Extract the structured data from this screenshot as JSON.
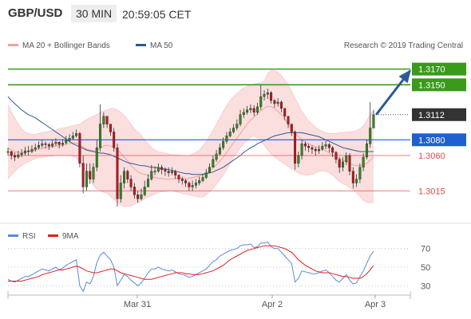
{
  "header": {
    "symbol": "GBP/USD",
    "timeframe": "30 MIN",
    "time": "20:59:05 CET"
  },
  "legend": {
    "ma20_bb": "MA 20 + Bollinger Bands",
    "ma50": "MA 50",
    "rsi": "RSI",
    "ma9": "9MA",
    "source": "Research © 2019 Trading Central"
  },
  "colors": {
    "bollinger_band": "#f7b5b5",
    "ma20": "#f4a0a0",
    "ma50": "#2c5a96",
    "resistance": "#3a9a1a",
    "pivot": "#1f5fcf",
    "support": "#e04a4a",
    "last_price": "#333333",
    "candle_up": "#2e8b1e",
    "candle_down": "#c0141b",
    "rsi_line": "#5b8bd6",
    "rsi_ma": "#e02020",
    "arrow": "#2c5a96"
  },
  "chart_data": [
    {
      "type": "candlestick",
      "ylim": [
        1.2992,
        1.3195
      ],
      "x_labels": [
        "Mar 31",
        "Apr 2",
        "Apr 3"
      ],
      "levels": [
        {
          "kind": "resistance",
          "value": 1.317,
          "label": "1.3170"
        },
        {
          "kind": "resistance",
          "value": 1.315,
          "label": "1.3150"
        },
        {
          "kind": "last_price",
          "value": 1.3112,
          "label": "1.3112"
        },
        {
          "kind": "pivot",
          "value": 1.308,
          "label": "1.3080"
        },
        {
          "kind": "support",
          "value": 1.306,
          "label": "1.3060"
        },
        {
          "kind": "support",
          "value": 1.3015,
          "label": "1.3015"
        }
      ],
      "arrow": {
        "from": 1.3112,
        "to": 1.317
      },
      "candles": {
        "count": 108,
        "close": [
          1.3065,
          1.306,
          1.3058,
          1.3061,
          1.3063,
          1.3066,
          1.3065,
          1.3068,
          1.307,
          1.3073,
          1.3075,
          1.3074,
          1.3072,
          1.3075,
          1.3077,
          1.3074,
          1.3076,
          1.3079,
          1.3082,
          1.3085,
          1.3088,
          1.305,
          1.302,
          1.304,
          1.303,
          1.3045,
          1.307,
          1.31,
          1.311,
          1.31,
          1.309,
          1.307,
          1.3005,
          1.3025,
          1.304,
          1.303,
          1.302,
          1.301,
          1.3005,
          1.301,
          1.302,
          1.303,
          1.304,
          1.304,
          1.3045,
          1.3042,
          1.304,
          1.3038,
          1.304,
          1.3035,
          1.303,
          1.3028,
          1.3025,
          1.302,
          1.3022,
          1.3025,
          1.3028,
          1.3032,
          1.3038,
          1.3045,
          1.3055,
          1.3062,
          1.307,
          1.3078,
          1.3085,
          1.309,
          1.3095,
          1.31,
          1.3112,
          1.3115,
          1.3118,
          1.312,
          1.3115,
          1.3122,
          1.3135,
          1.3138,
          1.314,
          1.313,
          1.3126,
          1.3128,
          1.312,
          1.311,
          1.31,
          1.309,
          1.305,
          1.306,
          1.3075,
          1.3072,
          1.307,
          1.3068,
          1.3066,
          1.3068,
          1.3072,
          1.3074,
          1.307,
          1.3064,
          1.3055,
          1.3045,
          1.3052,
          1.306,
          1.304,
          1.3025,
          1.303,
          1.3045,
          1.3058,
          1.3075,
          1.3095,
          1.3112
        ],
        "high": [
          1.307,
          1.3066,
          1.3064,
          1.3066,
          1.3068,
          1.3071,
          1.3072,
          1.3073,
          1.3075,
          1.3078,
          1.308,
          1.3078,
          1.3076,
          1.308,
          1.3082,
          1.3078,
          1.3081,
          1.3085,
          1.3087,
          1.309,
          1.3093,
          1.309,
          1.306,
          1.305,
          1.305,
          1.305,
          1.308,
          1.3125,
          1.3115,
          1.311,
          1.31,
          1.3095,
          1.3075,
          1.3035,
          1.3045,
          1.3042,
          1.3035,
          1.3025,
          1.3015,
          1.3018,
          1.3028,
          1.3036,
          1.3048,
          1.3046,
          1.305,
          1.3048,
          1.3045,
          1.3045,
          1.3045,
          1.3042,
          1.3036,
          1.3033,
          1.303,
          1.3027,
          1.3028,
          1.303,
          1.3033,
          1.3037,
          1.3043,
          1.305,
          1.306,
          1.3067,
          1.3075,
          1.3083,
          1.309,
          1.3095,
          1.31,
          1.3106,
          1.3118,
          1.312,
          1.3123,
          1.3125,
          1.3124,
          1.3127,
          1.315,
          1.3143,
          1.3145,
          1.3142,
          1.3132,
          1.3133,
          1.313,
          1.312,
          1.311,
          1.31,
          1.3092,
          1.3065,
          1.308,
          1.3078,
          1.3075,
          1.3073,
          1.3071,
          1.3073,
          1.3077,
          1.3079,
          1.3076,
          1.3072,
          1.3066,
          1.3058,
          1.3058,
          1.3064,
          1.3063,
          1.3045,
          1.3036,
          1.305,
          1.3063,
          1.308,
          1.3128,
          1.3118
        ],
        "low": [
          1.306,
          1.3055,
          1.3053,
          1.3056,
          1.3058,
          1.306,
          1.306,
          1.3063,
          1.3065,
          1.3068,
          1.307,
          1.3069,
          1.3067,
          1.307,
          1.3072,
          1.3069,
          1.3071,
          1.3074,
          1.3077,
          1.308,
          1.3083,
          1.3045,
          1.3012,
          1.3015,
          1.3024,
          1.3025,
          1.304,
          1.3065,
          1.3095,
          1.3095,
          1.3085,
          1.3065,
          1.2995,
          1.3,
          1.3018,
          1.3025,
          1.3015,
          1.3005,
          1.3,
          1.3003,
          1.3008,
          1.3024,
          1.3028,
          1.3035,
          1.3038,
          1.3036,
          1.3034,
          1.3033,
          1.3035,
          1.303,
          1.3025,
          1.3023,
          1.302,
          1.3015,
          1.3015,
          1.3018,
          1.3022,
          1.3026,
          1.303,
          1.3037,
          1.3045,
          1.3052,
          1.306,
          1.3067,
          1.3075,
          1.3083,
          1.3088,
          1.3092,
          1.3097,
          1.3108,
          1.3112,
          1.3114,
          1.311,
          1.3112,
          1.3118,
          1.313,
          1.3132,
          1.3126,
          1.3121,
          1.3122,
          1.3115,
          1.3105,
          1.3095,
          1.3085,
          1.3042,
          1.3045,
          1.3055,
          1.3066,
          1.3064,
          1.3062,
          1.306,
          1.3062,
          1.3066,
          1.3068,
          1.3064,
          1.3058,
          1.305,
          1.3038,
          1.304,
          1.3048,
          1.3035,
          1.3018,
          1.302,
          1.3025,
          1.304,
          1.3055,
          1.307,
          1.3105
        ]
      },
      "ma20": [
        1.307,
        1.3067,
        1.3065,
        1.3064,
        1.3064,
        1.3064,
        1.3065,
        1.3066,
        1.3067,
        1.3068,
        1.3069,
        1.307,
        1.3071,
        1.3071,
        1.3072,
        1.3073,
        1.3073,
        1.3074,
        1.3075,
        1.3076,
        1.3076,
        1.3073,
        1.3071,
        1.3068,
        1.3067,
        1.3066,
        1.3067,
        1.3069,
        1.3072,
        1.3073,
        1.3072,
        1.307,
        1.3067,
        1.3063,
        1.3058,
        1.3053,
        1.3047,
        1.3043,
        1.3039,
        1.3037,
        1.3036,
        1.3035,
        1.3033,
        1.3032,
        1.3031,
        1.3031,
        1.303,
        1.303,
        1.303,
        1.3031,
        1.3031,
        1.3031,
        1.303,
        1.3031,
        1.3032,
        1.3033,
        1.3034,
        1.3036,
        1.3038,
        1.304,
        1.3044,
        1.3048,
        1.3053,
        1.3058,
        1.3064,
        1.307,
        1.3076,
        1.3082,
        1.3088,
        1.3094,
        1.31,
        1.3105,
        1.3109,
        1.3113,
        1.3117,
        1.312,
        1.3123,
        1.3122,
        1.312,
        1.3116,
        1.3112,
        1.3106,
        1.31,
        1.3094,
        1.3088,
        1.3084,
        1.308,
        1.3077,
        1.3075,
        1.3073,
        1.3071,
        1.307,
        1.3068,
        1.3066,
        1.3063,
        1.3061,
        1.3058,
        1.3056,
        1.3054,
        1.3052,
        1.305,
        1.3048,
        1.3047,
        1.3047,
        1.3048,
        1.305,
        1.3054,
        1.3058
      ],
      "ma50": [
        1.3135,
        1.313,
        1.3126,
        1.3122,
        1.3118,
        1.3115,
        1.3112,
        1.311,
        1.3108,
        1.3105,
        1.3102,
        1.3099,
        1.3096,
        1.3093,
        1.309,
        1.3087,
        1.3084,
        1.3081,
        1.3078,
        1.3075,
        1.3073,
        1.3071,
        1.3069,
        1.3067,
        1.3066,
        1.3065,
        1.3064,
        1.3063,
        1.3063,
        1.3062,
        1.3061,
        1.3059,
        1.3057,
        1.3055,
        1.3053,
        1.3051,
        1.305,
        1.3049,
        1.3048,
        1.3047,
        1.3047,
        1.3046,
        1.3045,
        1.3045,
        1.3044,
        1.3043,
        1.3043,
        1.3042,
        1.3041,
        1.304,
        1.3039,
        1.3038,
        1.3037,
        1.3037,
        1.3036,
        1.3036,
        1.3036,
        1.3036,
        1.3037,
        1.3038,
        1.3039,
        1.3041,
        1.3043,
        1.3045,
        1.3048,
        1.3051,
        1.3054,
        1.3057,
        1.306,
        1.3064,
        1.3067,
        1.307,
        1.3072,
        1.3075,
        1.3077,
        1.3079,
        1.3081,
        1.3083,
        1.3085,
        1.3086,
        1.3087,
        1.3088,
        1.3089,
        1.3089,
        1.3089,
        1.3089,
        1.3089,
        1.3088,
        1.3087,
        1.3086,
        1.3085,
        1.3084,
        1.3082,
        1.308,
        1.3078,
        1.3076,
        1.3074,
        1.3072,
        1.307,
        1.3069,
        1.3068,
        1.3067,
        1.3066,
        1.3065,
        1.3065,
        1.3065,
        1.3065,
        1.3065
      ],
      "bb_upper": [
        1.3125,
        1.3115,
        1.3108,
        1.31,
        1.3094,
        1.309,
        1.3088,
        1.3087,
        1.3087,
        1.3088,
        1.3089,
        1.309,
        1.3091,
        1.3092,
        1.3093,
        1.3094,
        1.3095,
        1.3096,
        1.3097,
        1.3098,
        1.3099,
        1.31,
        1.3103,
        1.3106,
        1.3108,
        1.311,
        1.3112,
        1.3115,
        1.3117,
        1.3118,
        1.312,
        1.312,
        1.3118,
        1.3115,
        1.3111,
        1.3106,
        1.31,
        1.3094,
        1.309,
        1.3086,
        1.308,
        1.3075,
        1.307,
        1.3067,
        1.3065,
        1.3064,
        1.3063,
        1.3062,
        1.3061,
        1.3061,
        1.3061,
        1.306,
        1.306,
        1.306,
        1.3062,
        1.3064,
        1.3067,
        1.3072,
        1.3078,
        1.3085,
        1.3092,
        1.31,
        1.3108,
        1.3116,
        1.3124,
        1.313,
        1.3135,
        1.3139,
        1.3143,
        1.3146,
        1.3148,
        1.315,
        1.3151,
        1.3152,
        1.3153,
        1.3155,
        1.3165,
        1.3168,
        1.3168,
        1.3166,
        1.3162,
        1.3156,
        1.315,
        1.3142,
        1.3133,
        1.3125,
        1.3116,
        1.311,
        1.3104,
        1.31,
        1.3096,
        1.3093,
        1.3091,
        1.3089,
        1.3088,
        1.3088,
        1.3088,
        1.3089,
        1.3089,
        1.309,
        1.309,
        1.3091,
        1.3092,
        1.3094,
        1.3098,
        1.3105,
        1.3112,
        1.3118
      ],
      "bb_lower": [
        1.303,
        1.3035,
        1.304,
        1.3044,
        1.3047,
        1.305,
        1.3052,
        1.3054,
        1.3056,
        1.3057,
        1.3058,
        1.3058,
        1.3059,
        1.3059,
        1.306,
        1.306,
        1.306,
        1.306,
        1.306,
        1.3059,
        1.3057,
        1.3052,
        1.3045,
        1.3038,
        1.303,
        1.3022,
        1.3017,
        1.3015,
        1.3013,
        1.3012,
        1.3008,
        1.3004,
        1.3,
        1.2997,
        1.2995,
        1.2995,
        1.2996,
        1.2998,
        1.3,
        1.3002,
        1.3005,
        1.3007,
        1.3009,
        1.3011,
        1.3013,
        1.3014,
        1.3014,
        1.3015,
        1.3015,
        1.3014,
        1.3013,
        1.3012,
        1.3011,
        1.301,
        1.3009,
        1.3008,
        1.3007,
        1.3007,
        1.301,
        1.3014,
        1.3018,
        1.3023,
        1.3029,
        1.3035,
        1.3042,
        1.305,
        1.3057,
        1.3064,
        1.307,
        1.3075,
        1.3079,
        1.3083,
        1.3085,
        1.3082,
        1.3078,
        1.3073,
        1.3067,
        1.3062,
        1.3058,
        1.3055,
        1.3052,
        1.3049,
        1.3046,
        1.3043,
        1.304,
        1.3038,
        1.3036,
        1.3035,
        1.3035,
        1.3036,
        1.3038,
        1.304,
        1.304,
        1.304,
        1.3038,
        1.3035,
        1.3031,
        1.3027,
        1.3024,
        1.3022,
        1.3019,
        1.3016,
        1.3012,
        1.3008,
        1.3003,
        1.3,
        1.3,
        1.3
      ]
    },
    {
      "type": "line",
      "name": "RSI",
      "ylim": [
        20,
        80
      ],
      "y_ticks": [
        70,
        50,
        30
      ],
      "series": [
        {
          "name": "RSI",
          "values": [
            37,
            35,
            34,
            36,
            38,
            40,
            40,
            42,
            44,
            46,
            48,
            47,
            46,
            48,
            50,
            47,
            49,
            52,
            54,
            56,
            58,
            30,
            24,
            34,
            32,
            40,
            55,
            63,
            66,
            62,
            58,
            50,
            30,
            36,
            42,
            40,
            36,
            33,
            30,
            33,
            38,
            44,
            48,
            48,
            50,
            48,
            47,
            46,
            47,
            45,
            43,
            42,
            41,
            39,
            40,
            42,
            44,
            46,
            48,
            52,
            56,
            58,
            62,
            64,
            66,
            68,
            69,
            70,
            73,
            74,
            74,
            75,
            71,
            72,
            76,
            76,
            77,
            72,
            70,
            70,
            66,
            62,
            58,
            54,
            34,
            38,
            46,
            45,
            44,
            43,
            43,
            44,
            46,
            47,
            44,
            40,
            36,
            34,
            38,
            42,
            36,
            32,
            33,
            40,
            46,
            54,
            62,
            67
          ]
        },
        {
          "name": "9MA",
          "values": [
            35,
            35,
            35,
            35,
            35,
            36,
            37,
            38,
            39,
            40,
            42,
            43,
            44,
            45,
            46,
            47,
            47,
            48,
            49,
            50,
            51,
            50,
            48,
            46,
            45,
            44,
            44,
            45,
            46,
            47,
            48,
            48,
            46,
            44,
            43,
            42,
            41,
            40,
            39,
            38,
            37,
            37,
            37,
            38,
            39,
            40,
            41,
            42,
            43,
            44,
            44,
            44,
            43,
            43,
            42,
            42,
            42,
            43,
            44,
            45,
            46,
            48,
            50,
            52,
            55,
            58,
            60,
            62,
            64,
            66,
            68,
            69,
            70,
            71,
            72,
            73,
            73,
            73,
            73,
            72,
            71,
            70,
            68,
            66,
            62,
            58,
            55,
            52,
            50,
            48,
            46,
            45,
            44,
            44,
            44,
            43,
            42,
            41,
            40,
            40,
            39,
            38,
            38,
            38,
            40,
            43,
            47,
            52
          ]
        }
      ]
    }
  ]
}
